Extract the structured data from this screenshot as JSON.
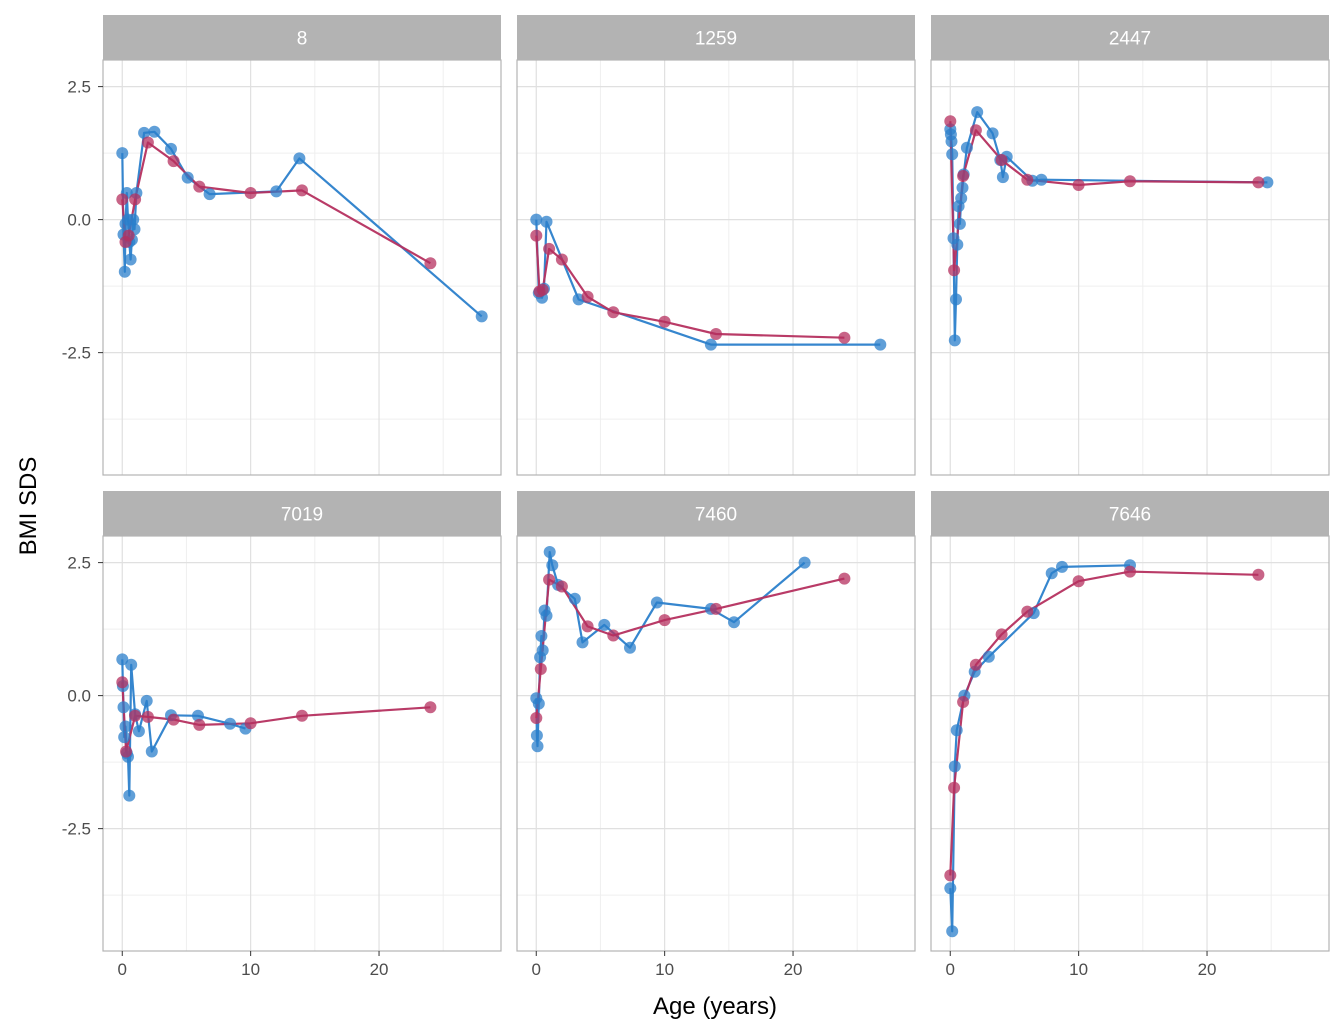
{
  "chart_data": {
    "type": "line",
    "xlabel": "Age (years)",
    "ylabel": "BMI SDS",
    "xlim": [
      -1.5,
      29.5
    ],
    "ylim": [
      -4.8,
      3.0
    ],
    "x_ticks": [
      0,
      10,
      20
    ],
    "y_ticks": [
      2.5,
      0.0,
      -2.5
    ],
    "y_tick_labels": [
      "2.5",
      "0.0",
      "-2.5"
    ],
    "grid": true,
    "colors": {
      "observed": "#2b7fcb",
      "predicted": "#b5305f",
      "strip_fill": "#b3b3b3",
      "panel_border": "#b3b3b3",
      "grid_major": "#e0e0e0",
      "grid_minor": "#efefef"
    },
    "panels": [
      {
        "id": "8",
        "series": [
          {
            "color": "#2b7fcb",
            "points": [
              [
                0.0,
                1.25
              ],
              [
                0.1,
                -0.28
              ],
              [
                0.2,
                -0.98
              ],
              [
                0.25,
                -0.08
              ],
              [
                0.35,
                0.5
              ],
              [
                0.45,
                0.0
              ],
              [
                0.55,
                -0.42
              ],
              [
                0.65,
                -0.75
              ],
              [
                0.75,
                -0.38
              ],
              [
                0.85,
                0.0
              ],
              [
                0.95,
                -0.18
              ],
              [
                1.1,
                0.5
              ],
              [
                1.7,
                1.63
              ],
              [
                2.5,
                1.65
              ],
              [
                3.8,
                1.33
              ],
              [
                5.1,
                0.79
              ],
              [
                6.8,
                0.48
              ],
              [
                12.0,
                0.53
              ],
              [
                13.8,
                1.15
              ],
              [
                28.0,
                -1.82
              ]
            ]
          },
          {
            "color": "#b5305f",
            "points": [
              [
                0.0,
                0.38
              ],
              [
                0.25,
                -0.42
              ],
              [
                0.5,
                -0.3
              ],
              [
                1.0,
                0.38
              ],
              [
                2.0,
                1.45
              ],
              [
                4.0,
                1.1
              ],
              [
                6.0,
                0.62
              ],
              [
                10.0,
                0.5
              ],
              [
                14.0,
                0.55
              ],
              [
                24.0,
                -0.82
              ]
            ]
          }
        ]
      },
      {
        "id": "1259",
        "series": [
          {
            "color": "#2b7fcb",
            "points": [
              [
                0.0,
                0.0
              ],
              [
                0.2,
                -1.38
              ],
              [
                0.45,
                -1.47
              ],
              [
                0.6,
                -1.3
              ],
              [
                0.8,
                -0.04
              ],
              [
                3.3,
                -1.5
              ],
              [
                13.6,
                -2.35
              ],
              [
                26.8,
                -2.35
              ]
            ]
          },
          {
            "color": "#b5305f",
            "points": [
              [
                0.0,
                -0.3
              ],
              [
                0.25,
                -1.35
              ],
              [
                0.5,
                -1.32
              ],
              [
                1.0,
                -0.55
              ],
              [
                2.0,
                -0.75
              ],
              [
                4.0,
                -1.45
              ],
              [
                6.0,
                -1.74
              ],
              [
                10.0,
                -1.92
              ],
              [
                14.0,
                -2.15
              ],
              [
                24.0,
                -2.22
              ]
            ]
          }
        ]
      },
      {
        "id": "2447",
        "series": [
          {
            "color": "#2b7fcb",
            "points": [
              [
                0.0,
                1.7
              ],
              [
                0.05,
                1.6
              ],
              [
                0.1,
                1.47
              ],
              [
                0.15,
                1.23
              ],
              [
                0.25,
                -0.35
              ],
              [
                0.35,
                -2.27
              ],
              [
                0.45,
                -1.5
              ],
              [
                0.55,
                -0.47
              ],
              [
                0.65,
                0.25
              ],
              [
                0.75,
                -0.08
              ],
              [
                0.85,
                0.4
              ],
              [
                0.95,
                0.6
              ],
              [
                1.05,
                0.85
              ],
              [
                1.3,
                1.35
              ],
              [
                2.1,
                2.02
              ],
              [
                3.3,
                1.62
              ],
              [
                3.9,
                1.12
              ],
              [
                4.1,
                0.8
              ],
              [
                4.4,
                1.18
              ],
              [
                6.4,
                0.73
              ],
              [
                7.1,
                0.75
              ],
              [
                24.7,
                0.7
              ]
            ]
          },
          {
            "color": "#b5305f",
            "points": [
              [
                0.0,
                1.85
              ],
              [
                0.3,
                -0.95
              ],
              [
                1.0,
                0.82
              ],
              [
                2.0,
                1.68
              ],
              [
                4.0,
                1.12
              ],
              [
                6.0,
                0.75
              ],
              [
                10.0,
                0.65
              ],
              [
                14.0,
                0.72
              ],
              [
                24.0,
                0.7
              ]
            ]
          }
        ]
      },
      {
        "id": "7019",
        "series": [
          {
            "color": "#2b7fcb",
            "points": [
              [
                0.0,
                0.68
              ],
              [
                0.05,
                0.18
              ],
              [
                0.1,
                -0.22
              ],
              [
                0.15,
                -0.78
              ],
              [
                0.25,
                -0.58
              ],
              [
                0.35,
                -1.08
              ],
              [
                0.45,
                -1.15
              ],
              [
                0.55,
                -1.88
              ],
              [
                0.7,
                0.58
              ],
              [
                1.0,
                -0.35
              ],
              [
                1.3,
                -0.67
              ],
              [
                1.9,
                -0.1
              ],
              [
                2.3,
                -1.05
              ],
              [
                3.8,
                -0.37
              ],
              [
                5.9,
                -0.38
              ],
              [
                8.4,
                -0.53
              ],
              [
                9.6,
                -0.62
              ]
            ]
          },
          {
            "color": "#b5305f",
            "points": [
              [
                0.0,
                0.25
              ],
              [
                0.3,
                -1.05
              ],
              [
                1.0,
                -0.38
              ],
              [
                2.0,
                -0.4
              ],
              [
                4.0,
                -0.45
              ],
              [
                6.0,
                -0.55
              ],
              [
                10.0,
                -0.52
              ],
              [
                14.0,
                -0.38
              ],
              [
                24.0,
                -0.22
              ]
            ]
          }
        ]
      },
      {
        "id": "7460",
        "series": [
          {
            "color": "#2b7fcb",
            "points": [
              [
                0.0,
                -0.05
              ],
              [
                0.05,
                -0.75
              ],
              [
                0.1,
                -0.95
              ],
              [
                0.2,
                -0.15
              ],
              [
                0.3,
                0.72
              ],
              [
                0.4,
                1.12
              ],
              [
                0.5,
                0.85
              ],
              [
                0.65,
                1.6
              ],
              [
                0.8,
                1.5
              ],
              [
                1.05,
                2.7
              ],
              [
                1.25,
                2.45
              ],
              [
                1.7,
                2.08
              ],
              [
                3.0,
                1.82
              ],
              [
                3.6,
                1.0
              ],
              [
                5.3,
                1.33
              ],
              [
                7.3,
                0.9
              ],
              [
                9.4,
                1.75
              ],
              [
                13.6,
                1.63
              ],
              [
                15.4,
                1.38
              ],
              [
                20.9,
                2.5
              ]
            ]
          },
          {
            "color": "#b5305f",
            "points": [
              [
                0.0,
                -0.42
              ],
              [
                0.35,
                0.5
              ],
              [
                1.0,
                2.18
              ],
              [
                2.0,
                2.05
              ],
              [
                4.0,
                1.3
              ],
              [
                6.0,
                1.13
              ],
              [
                10.0,
                1.42
              ],
              [
                14.0,
                1.63
              ],
              [
                24.0,
                2.2
              ]
            ]
          }
        ]
      },
      {
        "id": "7646",
        "series": [
          {
            "color": "#2b7fcb",
            "points": [
              [
                0.0,
                -3.62
              ],
              [
                0.15,
                -4.43
              ],
              [
                0.35,
                -1.33
              ],
              [
                0.5,
                -0.65
              ],
              [
                1.1,
                0.0
              ],
              [
                1.9,
                0.45
              ],
              [
                3.0,
                0.73
              ],
              [
                6.5,
                1.55
              ],
              [
                7.9,
                2.3
              ],
              [
                8.7,
                2.42
              ],
              [
                14.0,
                2.45
              ]
            ]
          },
          {
            "color": "#b5305f",
            "points": [
              [
                0.0,
                -3.38
              ],
              [
                0.3,
                -1.73
              ],
              [
                1.0,
                -0.12
              ],
              [
                2.0,
                0.58
              ],
              [
                4.0,
                1.15
              ],
              [
                6.0,
                1.58
              ],
              [
                10.0,
                2.15
              ],
              [
                14.0,
                2.33
              ],
              [
                24.0,
                2.27
              ]
            ]
          }
        ]
      }
    ]
  }
}
